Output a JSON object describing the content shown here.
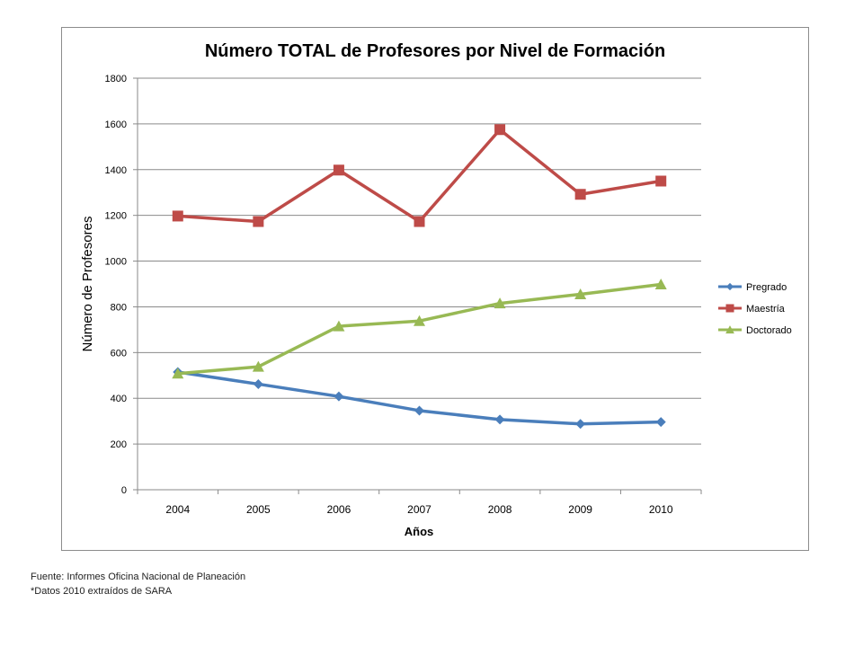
{
  "chart_data": {
    "type": "line",
    "title": "Número TOTAL de Profesores por Nivel de Formación",
    "xlabel": "Años",
    "ylabel": "Número de Profesores",
    "categories": [
      "2004",
      "2005",
      "2006",
      "2007",
      "2008",
      "2009",
      "2010"
    ],
    "ylim": [
      0,
      1800
    ],
    "yticks": [
      0,
      200,
      400,
      600,
      800,
      1000,
      1200,
      1400,
      1600,
      1800
    ],
    "grid": true,
    "legend": "right",
    "series": [
      {
        "name": "Pregrado",
        "values": [
          515,
          462,
          408,
          346,
          307,
          288,
          296
        ],
        "color": "#4a7ebb",
        "marker": "diamond"
      },
      {
        "name": "Maestría",
        "values": [
          1197,
          1173,
          1398,
          1173,
          1575,
          1292,
          1350
        ],
        "color": "#be4b48",
        "marker": "square"
      },
      {
        "name": "Doctorado",
        "values": [
          508,
          538,
          715,
          738,
          815,
          855,
          898
        ],
        "color": "#98b954",
        "marker": "triangle"
      }
    ]
  },
  "footnotes": {
    "source": "Fuente: Informes Oficina Nacional de Planeación",
    "note": "*Datos 2010 extraídos de SARA"
  }
}
